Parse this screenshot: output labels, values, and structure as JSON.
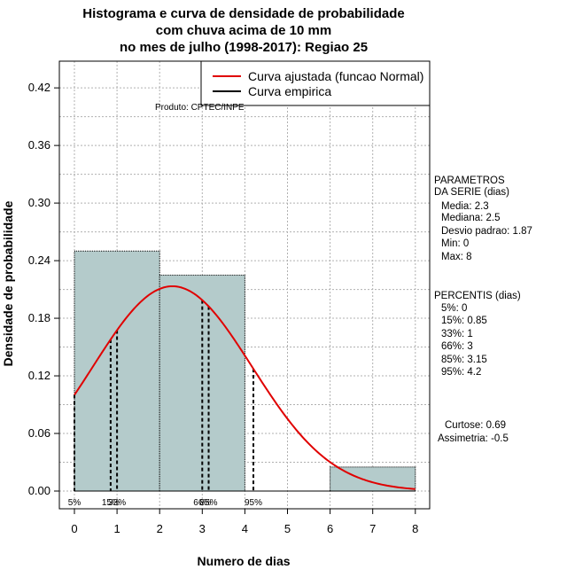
{
  "chart_data": {
    "type": "bar",
    "title_lines": [
      "Histograma e curva de densidade de probabilidade",
      "com chuva acima de 10 mm",
      "no mes de julho (1998-2017): Regiao 25"
    ],
    "xlabel": "Numero de dias",
    "ylabel": "Densidade de probabilidade",
    "xlim": [
      0,
      8
    ],
    "ylim": [
      0,
      0.42
    ],
    "xticks": [
      "0",
      "1",
      "2",
      "3",
      "4",
      "5",
      "6",
      "7",
      "8"
    ],
    "yticks": [
      "0.00",
      "0.06",
      "0.12",
      "0.18",
      "0.24",
      "0.30",
      "0.36",
      "0.42"
    ],
    "bins": [
      {
        "x0": 0,
        "x1": 2,
        "density": 0.25
      },
      {
        "x0": 2,
        "x1": 4,
        "density": 0.225
      },
      {
        "x0": 4,
        "x1": 6,
        "density": 0.0
      },
      {
        "x0": 6,
        "x1": 8,
        "density": 0.025
      }
    ],
    "normal_fit": {
      "mean": 2.3,
      "sd": 1.87
    },
    "percentile_lines": [
      {
        "label": "5%",
        "x": 0.0
      },
      {
        "label": "15%",
        "x": 0.85
      },
      {
        "label": "33%",
        "x": 1.0
      },
      {
        "label": "66%",
        "x": 3.0
      },
      {
        "label": "85%",
        "x": 3.15
      },
      {
        "label": "95%",
        "x": 4.2
      }
    ],
    "legend": {
      "position": "top-right",
      "entries": [
        {
          "label": "Curva ajustada (funcao Normal)",
          "color": "#e00000"
        },
        {
          "label": "Curva empirica",
          "color": "#000000"
        }
      ]
    },
    "grid": true
  },
  "produto": "Produto: CPTEC/INPE",
  "parametros": {
    "title_lines": [
      "PARAMETROS",
      "DA SERIE (dias)"
    ],
    "items": [
      "Media: 2.3",
      "Mediana: 2.5",
      "Desvio padrao: 1.87",
      "Min: 0",
      "Max: 8"
    ]
  },
  "percentis": {
    "title": "PERCENTIS (dias)",
    "items": [
      "5%: 0",
      "15%: 0.85",
      "33%: 1",
      "66%: 3",
      "85%: 3.15",
      "95%: 4.2"
    ]
  },
  "forma": {
    "items": [
      "Curtose: 0.69",
      "Assimetria: -0.5"
    ]
  },
  "colors": {
    "bar_fill": "#b4cbcb",
    "curve": "#e00000",
    "grid": "#b0b0b0"
  }
}
